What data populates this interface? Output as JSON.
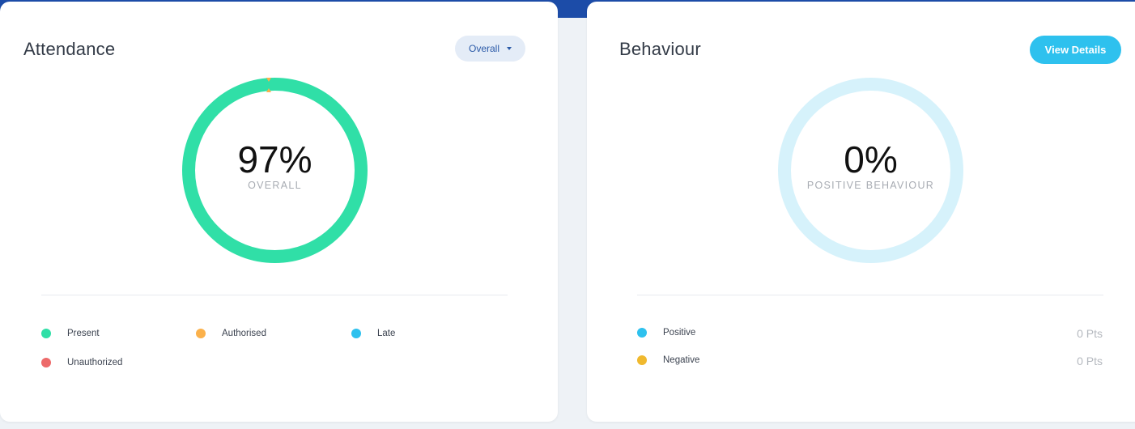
{
  "colors": {
    "present": "#30dfa7",
    "authorised": "#fbb14b",
    "late": "#2ec1ee",
    "unauthorized": "#ed6a6a",
    "positive": "#2ec1ee",
    "negative": "#f0b92e",
    "behaviour_ring": "#d6f2fb"
  },
  "attendance": {
    "title": "Attendance",
    "dropdown_label": "Overall",
    "percent": "97%",
    "caption": "OVERALL",
    "legend": {
      "present": "Present",
      "authorised": "Authorised",
      "late": "Late",
      "unauthorized": "Unauthorized"
    }
  },
  "behaviour": {
    "title": "Behaviour",
    "button_label": "View Details",
    "percent": "0%",
    "caption": "POSITIVE BEHAVIOUR",
    "legend": {
      "positive": "Positive",
      "positive_pts": "0 Pts",
      "negative": "Negative",
      "negative_pts": "0 Pts"
    }
  }
}
